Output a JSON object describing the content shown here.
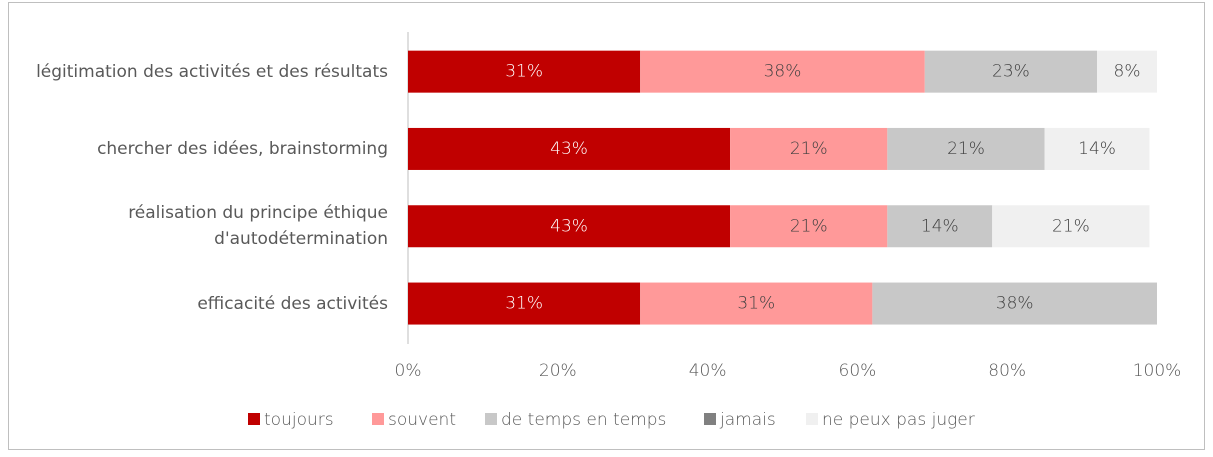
{
  "chart_data": {
    "type": "stacked_barh",
    "categories": [
      "légitimation des activités et des résultats",
      "chercher des idées, brainstorming",
      "réalisation du principe éthique\nd'autodétermination",
      "efficacité des activités"
    ],
    "series": [
      {
        "name": "toujours",
        "color": "#c00000",
        "values": [
          31,
          43,
          43,
          31
        ],
        "value_labels": [
          "31%",
          "43%",
          "43%",
          "31%"
        ]
      },
      {
        "name": "souvent",
        "color": "#ff9999",
        "values": [
          38,
          21,
          21,
          31
        ],
        "value_labels": [
          "38%",
          "21%",
          "21%",
          "31%"
        ]
      },
      {
        "name": "de temps en temps",
        "color": "#c8c8c8",
        "values": [
          23,
          21,
          14,
          38
        ],
        "value_labels": [
          "23%",
          "21%",
          "14%",
          "38%"
        ]
      },
      {
        "name": "jamais",
        "color": "#808080",
        "values": [
          null,
          null,
          null,
          null
        ]
      },
      {
        "name": "ne peux pas juger",
        "color": "#f0f0f0",
        "values": [
          8,
          14,
          21,
          null
        ],
        "value_labels": [
          "8%",
          "14%",
          "21%",
          null
        ]
      }
    ],
    "xlim": [
      0,
      100
    ],
    "xticks": [
      {
        "value": 0,
        "label": "0%"
      },
      {
        "value": 20,
        "label": "20%"
      },
      {
        "value": 40,
        "label": "40%"
      },
      {
        "value": 60,
        "label": "60%"
      },
      {
        "value": 80,
        "label": "80%"
      },
      {
        "value": 100,
        "label": "100%"
      }
    ],
    "legend": "bottom"
  }
}
